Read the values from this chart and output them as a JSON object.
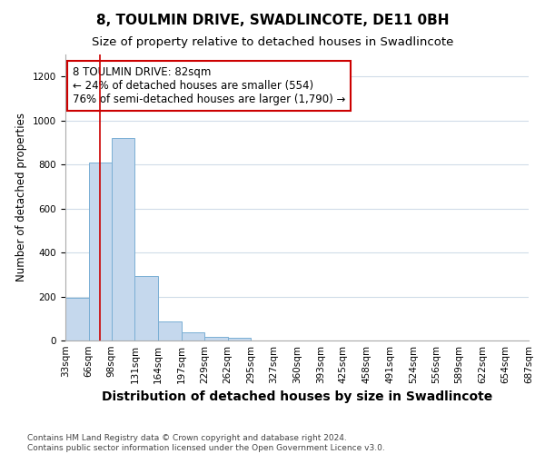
{
  "title": "8, TOULMIN DRIVE, SWADLINCOTE, DE11 0BH",
  "subtitle": "Size of property relative to detached houses in Swadlincote",
  "xlabel": "Distribution of detached houses by size in Swadlincote",
  "ylabel": "Number of detached properties",
  "bin_edges": [
    33,
    66,
    98,
    131,
    164,
    197,
    229,
    262,
    295,
    327,
    360,
    393,
    425,
    458,
    491,
    524,
    556,
    589,
    622,
    654,
    687
  ],
  "bar_heights": [
    195,
    810,
    920,
    295,
    88,
    38,
    15,
    12,
    0,
    0,
    0,
    0,
    0,
    0,
    0,
    0,
    0,
    0,
    0,
    0
  ],
  "bar_color": "#c5d8ed",
  "bar_edge_color": "#7aafd4",
  "property_size": 82,
  "vline_color": "#cc0000",
  "annotation_text": "8 TOULMIN DRIVE: 82sqm\n← 24% of detached houses are smaller (554)\n76% of semi-detached houses are larger (1,790) →",
  "annotation_box_color": "#ffffff",
  "annotation_box_edge_color": "#cc0000",
  "ylim": [
    0,
    1300
  ],
  "yticks": [
    0,
    200,
    400,
    600,
    800,
    1000,
    1200
  ],
  "tick_labels": [
    "33sqm",
    "66sqm",
    "98sqm",
    "131sqm",
    "164sqm",
    "197sqm",
    "229sqm",
    "262sqm",
    "295sqm",
    "327sqm",
    "360sqm",
    "393sqm",
    "425sqm",
    "458sqm",
    "491sqm",
    "524sqm",
    "556sqm",
    "589sqm",
    "622sqm",
    "654sqm",
    "687sqm"
  ],
  "footnote": "Contains HM Land Registry data © Crown copyright and database right 2024.\nContains public sector information licensed under the Open Government Licence v3.0.",
  "background_color": "#ffffff",
  "grid_color": "#d0dce8",
  "title_fontsize": 11,
  "subtitle_fontsize": 9.5,
  "xlabel_fontsize": 10,
  "ylabel_fontsize": 8.5,
  "tick_fontsize": 7.5,
  "annotation_fontsize": 8.5,
  "footnote_fontsize": 6.5
}
